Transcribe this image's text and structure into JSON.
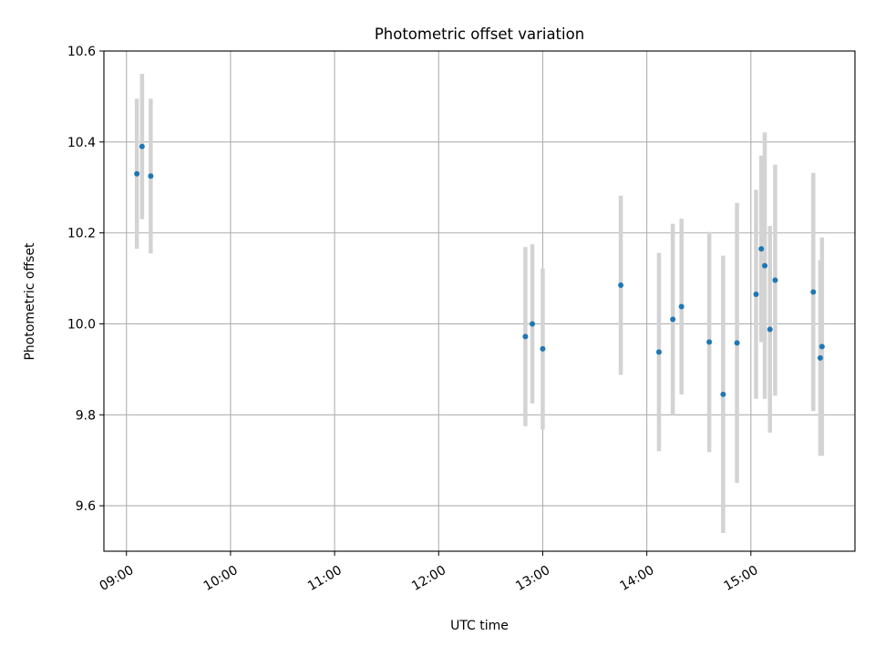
{
  "chart_data": {
    "type": "scatter",
    "title": "Photometric offset variation",
    "xlabel": "UTC time",
    "ylabel": "Photometric offset",
    "x_unit": "UTC time of day (HH:MM)",
    "xlim": [
      "08:47",
      "16:00"
    ],
    "ylim": [
      9.5,
      10.6
    ],
    "x_ticks": [
      "09:00",
      "10:00",
      "11:00",
      "12:00",
      "13:00",
      "14:00",
      "15:00"
    ],
    "y_ticks": [
      9.6,
      9.8,
      10.0,
      10.2,
      10.4,
      10.6
    ],
    "grid": true,
    "legend": "none",
    "colors": {
      "point": "#1f77b4",
      "error_bar": "#d3d3d3"
    },
    "points": [
      {
        "x": "09:06",
        "y": 10.33,
        "err": 0.165
      },
      {
        "x": "09:09",
        "y": 10.39,
        "err": 0.16
      },
      {
        "x": "09:14",
        "y": 10.325,
        "err": 0.17
      },
      {
        "x": "12:50",
        "y": 9.972,
        "err": 0.197
      },
      {
        "x": "12:54",
        "y": 10.0,
        "err": 0.175
      },
      {
        "x": "13:00",
        "y": 9.945,
        "err": 0.177
      },
      {
        "x": "13:45",
        "y": 10.085,
        "err": 0.197
      },
      {
        "x": "14:07",
        "y": 9.938,
        "err": 0.218
      },
      {
        "x": "14:15",
        "y": 10.01,
        "err": 0.21
      },
      {
        "x": "14:20",
        "y": 10.038,
        "err": 0.193
      },
      {
        "x": "14:36",
        "y": 9.96,
        "err": 0.242
      },
      {
        "x": "14:44",
        "y": 9.845,
        "err": 0.305
      },
      {
        "x": "14:52",
        "y": 9.958,
        "err": 0.308
      },
      {
        "x": "15:03",
        "y": 10.065,
        "err": 0.23
      },
      {
        "x": "15:06",
        "y": 10.165,
        "err": 0.205
      },
      {
        "x": "15:08",
        "y": 10.128,
        "err": 0.293
      },
      {
        "x": "15:11",
        "y": 9.988,
        "err": 0.227
      },
      {
        "x": "15:14",
        "y": 10.096,
        "err": 0.254
      },
      {
        "x": "15:36",
        "y": 10.07,
        "err": 0.262
      },
      {
        "x": "15:40",
        "y": 9.925,
        "err": 0.215
      },
      {
        "x": "15:41",
        "y": 9.95,
        "err": 0.24
      }
    ]
  }
}
